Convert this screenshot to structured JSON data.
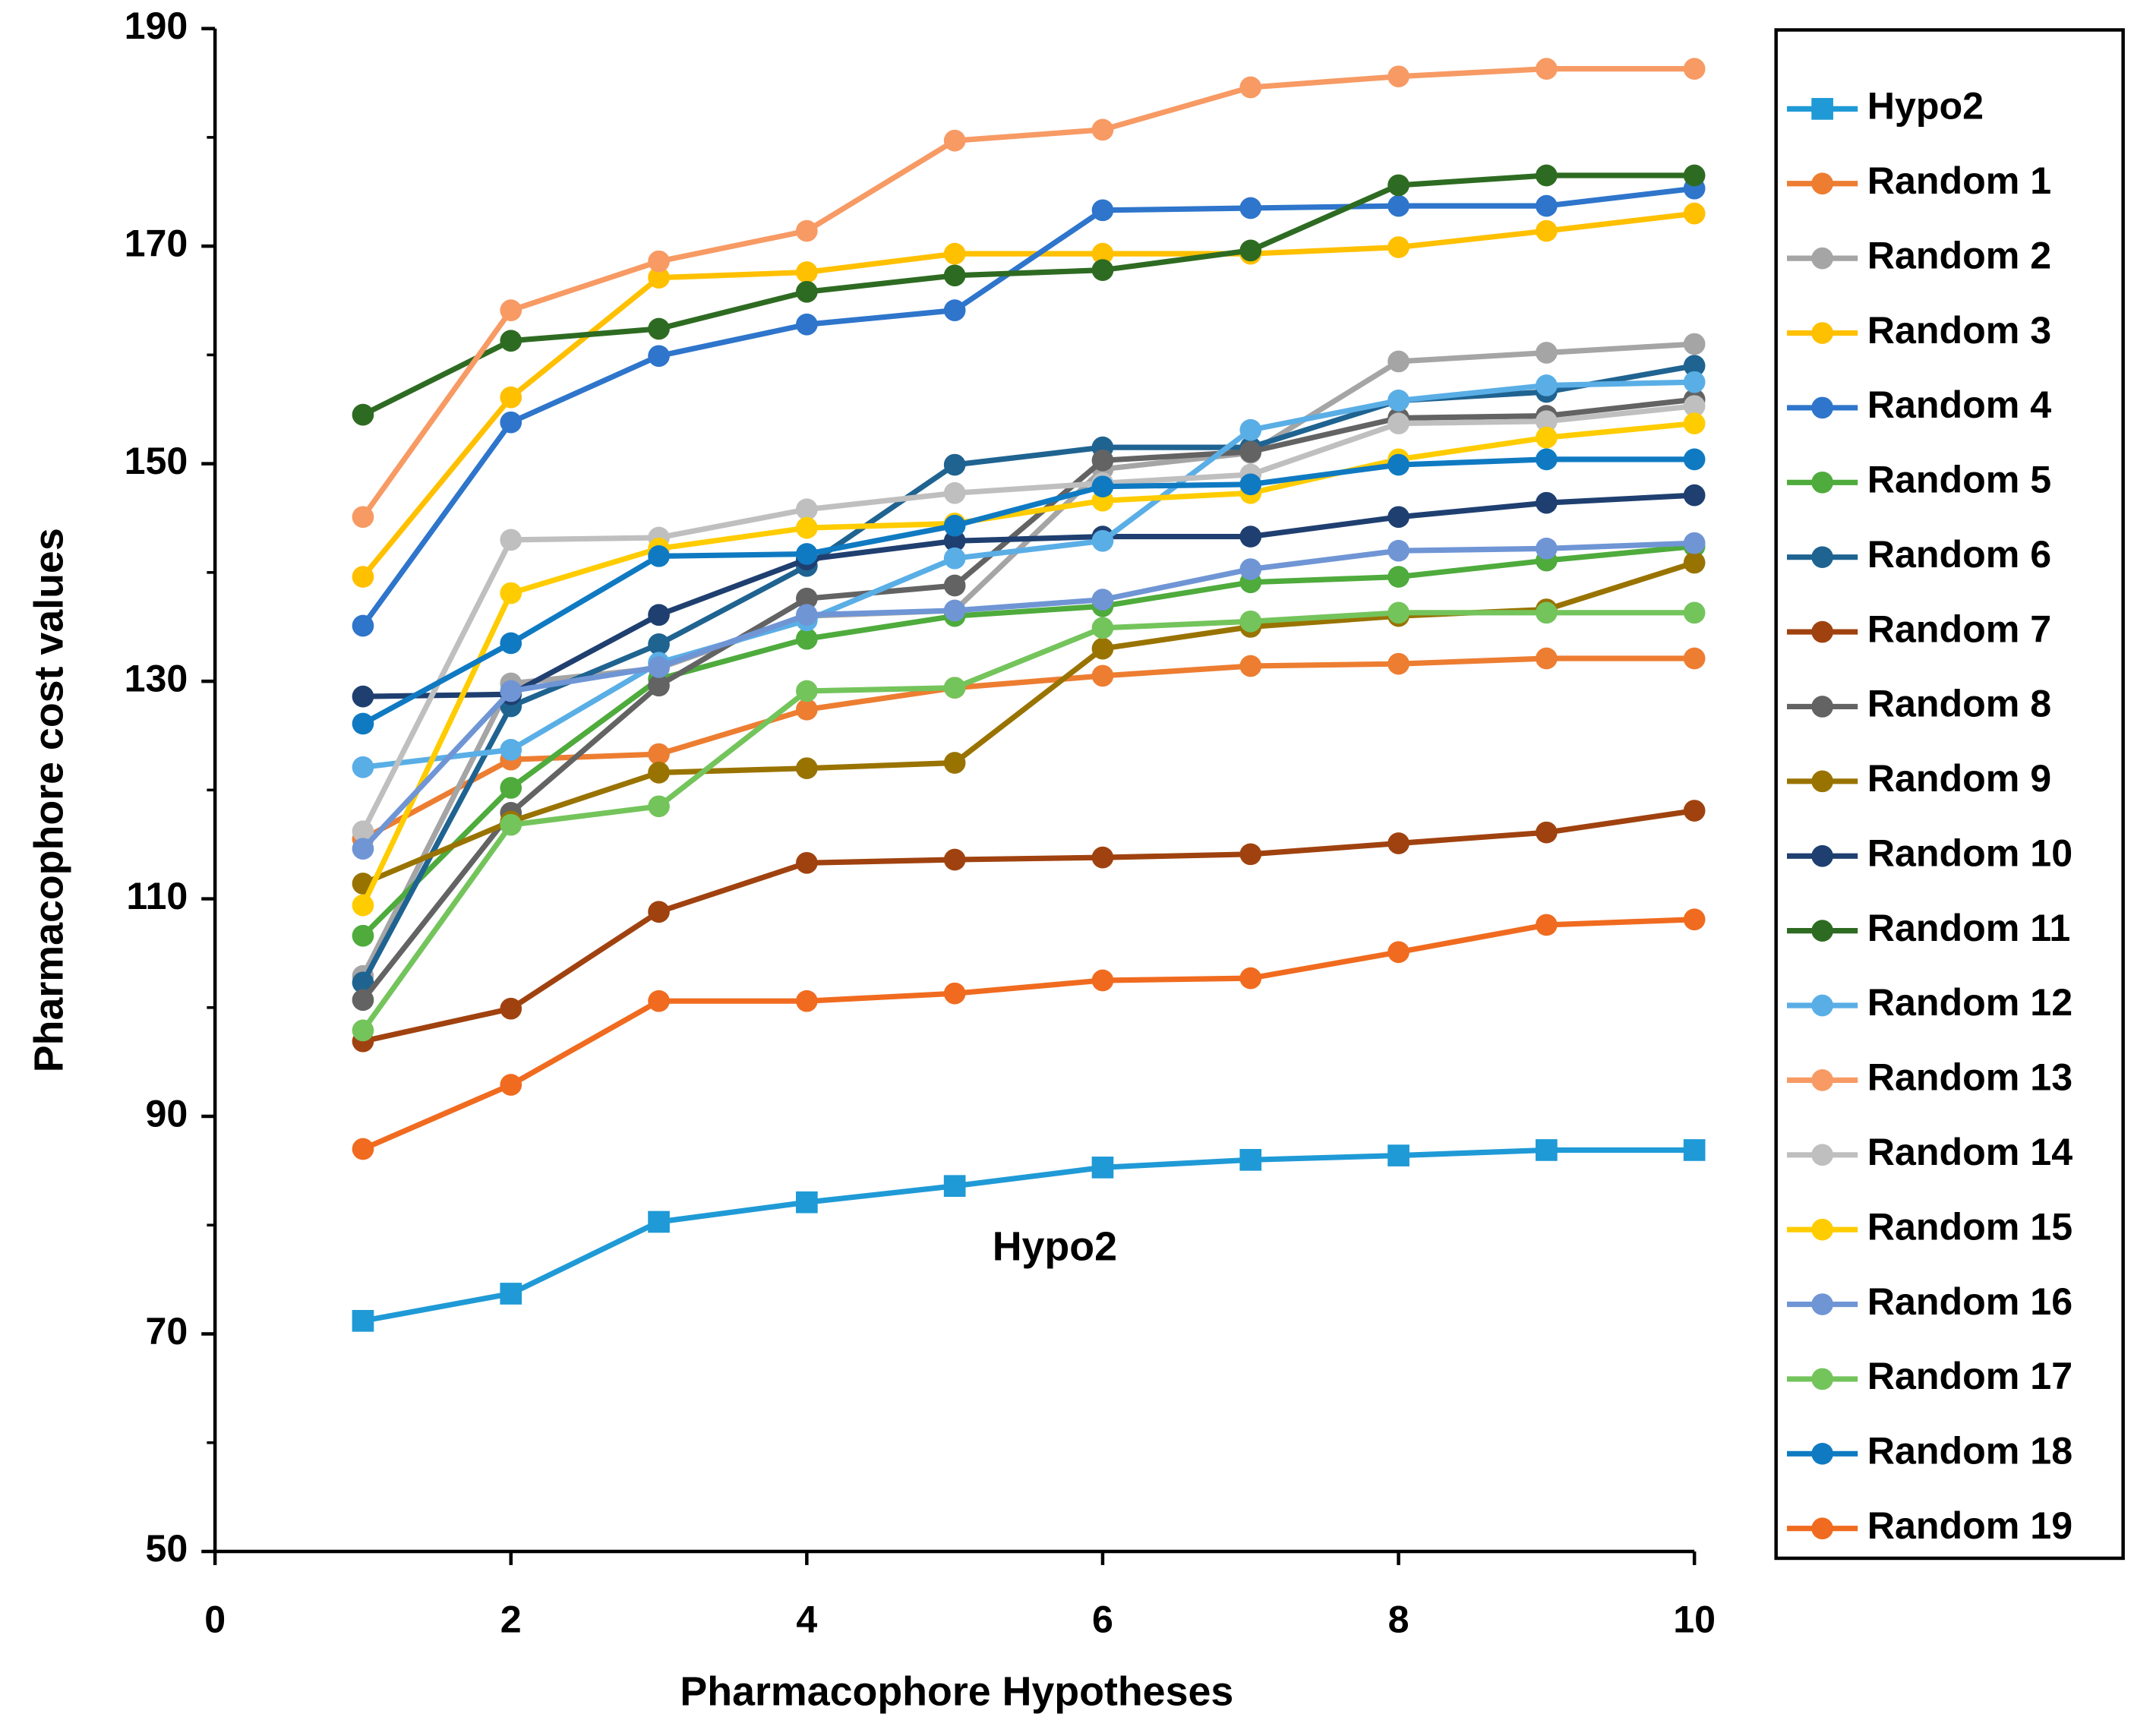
{
  "chart_data": {
    "type": "line",
    "xlabel": "Pharmacophore Hypotheses",
    "ylabel": "Pharmacophore cost values",
    "annotation": "Hypo2",
    "x": [
      1,
      2,
      3,
      4,
      5,
      6,
      7,
      8,
      9,
      10
    ],
    "xlim": [
      0,
      10
    ],
    "xticks": [
      0,
      2,
      4,
      6,
      8,
      10
    ],
    "ylim": [
      50,
      190
    ],
    "yticks": [
      50,
      70,
      90,
      110,
      130,
      150,
      170,
      190
    ],
    "legend": "right",
    "series": [
      {
        "name": "Hypo2",
        "color": "#1f9ad6",
        "marker": "square",
        "values": [
          71.2,
          73.7,
          80.3,
          82.1,
          83.6,
          85.3,
          86.0,
          86.4,
          86.9,
          86.9
        ]
      },
      {
        "name": "Random 1",
        "color": "#ed7d31",
        "marker": "circle",
        "values": [
          115.5,
          122.8,
          123.3,
          127.4,
          129.4,
          130.5,
          131.4,
          131.6,
          132.1,
          132.1
        ]
      },
      {
        "name": "Random 2",
        "color": "#a5a5a5",
        "marker": "circle",
        "values": [
          102.9,
          129.8,
          131.2,
          136.0,
          136.5,
          149.5,
          151.0,
          159.4,
          160.2,
          161.0
        ]
      },
      {
        "name": "Random 3",
        "color": "#ffc000",
        "marker": "circle",
        "values": [
          139.6,
          156.1,
          167.1,
          167.6,
          169.3,
          169.3,
          169.3,
          169.9,
          171.4,
          173.0
        ]
      },
      {
        "name": "Random 4",
        "color": "#2e75cb",
        "marker": "circle",
        "values": [
          135.1,
          153.8,
          159.9,
          162.8,
          164.1,
          173.3,
          173.5,
          173.7,
          173.7,
          175.3
        ]
      },
      {
        "name": "Random 5",
        "color": "#4eab3c",
        "marker": "circle",
        "values": [
          106.6,
          120.2,
          130.2,
          133.9,
          136.0,
          136.9,
          139.1,
          139.6,
          141.1,
          142.4
        ]
      },
      {
        "name": "Random 6",
        "color": "#1f6391",
        "marker": "circle",
        "values": [
          102.3,
          127.7,
          133.4,
          140.6,
          149.9,
          151.5,
          151.5,
          155.8,
          156.6,
          159.0
        ]
      },
      {
        "name": "Random 7",
        "color": "#a0420f",
        "marker": "circle",
        "values": [
          96.9,
          99.9,
          108.8,
          113.3,
          113.6,
          113.8,
          114.1,
          115.1,
          116.1,
          118.1
        ]
      },
      {
        "name": "Random 8",
        "color": "#636363",
        "marker": "circle",
        "values": [
          100.7,
          117.9,
          129.6,
          137.6,
          138.8,
          150.3,
          151.1,
          154.2,
          154.4,
          155.9
        ]
      },
      {
        "name": "Random 9",
        "color": "#997300",
        "marker": "circle",
        "values": [
          111.4,
          117.1,
          121.6,
          122.0,
          122.5,
          133.0,
          135.0,
          136.0,
          136.6,
          140.9
        ]
      },
      {
        "name": "Random 10",
        "color": "#1f3f70",
        "marker": "circle",
        "values": [
          128.6,
          128.8,
          136.1,
          141.2,
          142.9,
          143.3,
          143.3,
          145.1,
          146.4,
          147.1
        ]
      },
      {
        "name": "Random 11",
        "color": "#2e6b22",
        "marker": "circle",
        "values": [
          154.5,
          161.3,
          162.4,
          165.8,
          167.3,
          167.8,
          169.6,
          175.6,
          176.5,
          176.5
        ]
      },
      {
        "name": "Random 12",
        "color": "#5aaee6",
        "marker": "circle",
        "values": [
          122.1,
          123.7,
          131.7,
          135.6,
          141.3,
          142.9,
          153.1,
          155.8,
          157.2,
          157.5
        ]
      },
      {
        "name": "Random 13",
        "color": "#f79a64",
        "marker": "circle",
        "values": [
          145.1,
          164.1,
          168.6,
          171.4,
          179.7,
          180.7,
          184.6,
          185.6,
          186.3,
          186.3
        ]
      },
      {
        "name": "Random 14",
        "color": "#bfbfbf",
        "marker": "circle",
        "values": [
          116.2,
          143.0,
          143.2,
          145.8,
          147.3,
          148.2,
          149.0,
          153.7,
          153.9,
          155.3
        ]
      },
      {
        "name": "Random 15",
        "color": "#ffcc00",
        "marker": "circle",
        "values": [
          109.4,
          138.1,
          142.2,
          144.1,
          144.5,
          146.6,
          147.3,
          150.4,
          152.4,
          153.7
        ]
      },
      {
        "name": "Random 16",
        "color": "#6f95d5",
        "marker": "circle",
        "values": [
          114.6,
          129.1,
          131.3,
          136.1,
          136.5,
          137.5,
          140.3,
          142.0,
          142.2,
          142.7
        ]
      },
      {
        "name": "Random 17",
        "color": "#74c45c",
        "marker": "circle",
        "values": [
          97.9,
          116.8,
          118.5,
          129.1,
          129.4,
          134.9,
          135.5,
          136.3,
          136.3,
          136.3
        ]
      },
      {
        "name": "Random 18",
        "color": "#0f7ac2",
        "marker": "circle",
        "values": [
          126.1,
          133.5,
          141.5,
          141.7,
          144.3,
          147.9,
          148.1,
          149.9,
          150.4,
          150.4
        ]
      },
      {
        "name": "Random 19",
        "color": "#f06b1f",
        "marker": "circle",
        "values": [
          87.0,
          92.9,
          100.6,
          100.6,
          101.3,
          102.5,
          102.7,
          105.1,
          107.6,
          108.1
        ]
      }
    ]
  }
}
